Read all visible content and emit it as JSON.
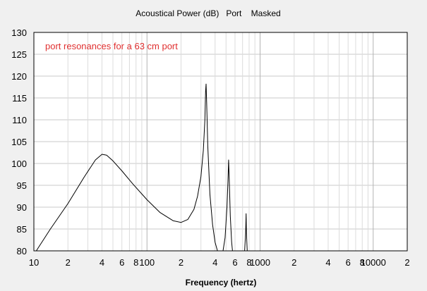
{
  "chart_data": {
    "type": "line",
    "title": "Acoustical Power (dB)   Port    Masked",
    "xlabel": "Frequency (hertz)",
    "ylabel": "",
    "xscale": "log",
    "xlim": [
      10,
      20000
    ],
    "ylim": [
      80,
      130
    ],
    "grid": true,
    "y_ticks": [
      80,
      85,
      90,
      95,
      100,
      105,
      110,
      115,
      120,
      125,
      130
    ],
    "x_tick_labels": [
      {
        "value": 10,
        "label": "10"
      },
      {
        "value": 20,
        "label": "2"
      },
      {
        "value": 40,
        "label": "4"
      },
      {
        "value": 60,
        "label": "6"
      },
      {
        "value": 80,
        "label": "8"
      },
      {
        "value": 100,
        "label": "100"
      },
      {
        "value": 200,
        "label": "2"
      },
      {
        "value": 400,
        "label": "4"
      },
      {
        "value": 600,
        "label": "6"
      },
      {
        "value": 800,
        "label": "8"
      },
      {
        "value": 1000,
        "label": "1000"
      },
      {
        "value": 2000,
        "label": "2"
      },
      {
        "value": 4000,
        "label": "4"
      },
      {
        "value": 6000,
        "label": "6"
      },
      {
        "value": 8000,
        "label": "8"
      },
      {
        "value": 10000,
        "label": "10000"
      },
      {
        "value": 20000,
        "label": "2"
      }
    ],
    "annotation": "port resonances for a 63 cm port",
    "line_color": "#000000",
    "annotation_color": "#e03030",
    "series": [
      {
        "segments": [
          [
            [
              10.5,
              80
            ],
            [
              14,
              85
            ],
            [
              20,
              90.8
            ],
            [
              28,
              97
            ],
            [
              35,
              100.8
            ],
            [
              40,
              102.1
            ],
            [
              44,
              101.9
            ],
            [
              50,
              100.6
            ],
            [
              60,
              98.3
            ],
            [
              75,
              95.3
            ],
            [
              100,
              91.7
            ],
            [
              130,
              88.8
            ],
            [
              170,
              86.9
            ],
            [
              200,
              86.5
            ],
            [
              230,
              87.2
            ],
            [
              260,
              89.5
            ],
            [
              280,
              92.5
            ],
            [
              300,
              97
            ],
            [
              315,
              103
            ],
            [
              325,
              110
            ],
            [
              330,
              116.5
            ],
            [
              333,
              118.2
            ],
            [
              337,
              114
            ],
            [
              345,
              104
            ],
            [
              360,
              93
            ],
            [
              380,
              86
            ],
            [
              400,
              82
            ],
            [
              420,
              80
            ]
          ],
          [
            [
              470,
              80
            ],
            [
              490,
              83
            ],
            [
              510,
              90
            ],
            [
              520,
              96
            ],
            [
              527,
              100.8
            ],
            [
              533,
              97
            ],
            [
              545,
              88
            ],
            [
              560,
              82
            ],
            [
              570,
              80
            ]
          ],
          [
            [
              730,
              80
            ],
            [
              745,
              84
            ],
            [
              752,
              88.5
            ],
            [
              758,
              84
            ],
            [
              770,
              80
            ]
          ]
        ]
      }
    ]
  }
}
